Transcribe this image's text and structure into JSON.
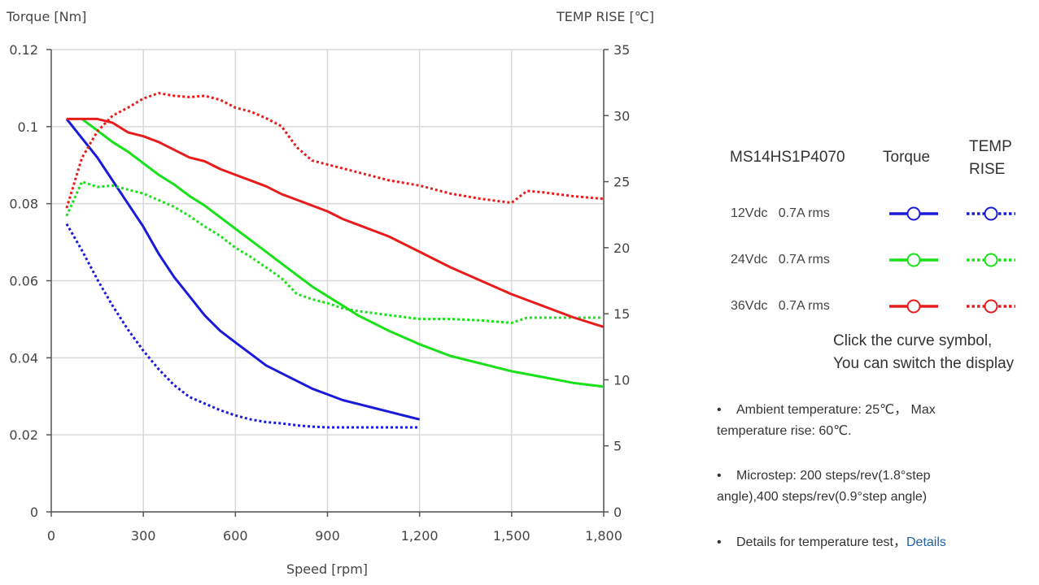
{
  "chart_data": {
    "type": "line",
    "title": "",
    "xlabel": "Speed [rpm]",
    "ylabel": "Torque  [Nm]",
    "y2label": "TEMP RISE [℃]",
    "xlim": [
      0,
      1800
    ],
    "ylim": [
      0,
      0.12
    ],
    "y2lim": [
      0,
      35
    ],
    "x_ticks": [
      0,
      300,
      600,
      900,
      1200,
      1500,
      1800
    ],
    "x_tick_labels": [
      "0",
      "300",
      "600",
      "900",
      "1,200",
      "1,500",
      "1,800"
    ],
    "y_ticks": [
      0,
      0.02,
      0.04,
      0.06,
      0.08,
      0.1,
      0.12
    ],
    "y_tick_labels": [
      "0",
      "0.02",
      "0.04",
      "0.06",
      "0.08",
      "0.1",
      "0.12"
    ],
    "y2_ticks": [
      0,
      5,
      10,
      15,
      20,
      25,
      30,
      35
    ],
    "y2_tick_labels": [
      "0",
      "5",
      "10",
      "15",
      "20",
      "25",
      "30",
      "35"
    ],
    "grid": true,
    "series": [
      {
        "name": "12Vdc 0.7A rms",
        "kind": "torque",
        "axis": "left",
        "color": "#1a1adb",
        "style": "solid",
        "x": [
          50,
          100,
          150,
          200,
          250,
          300,
          350,
          400,
          450,
          500,
          550,
          600,
          650,
          700,
          750,
          800,
          850,
          900,
          950,
          1000,
          1050,
          1100,
          1150,
          1200
        ],
        "y": [
          0.102,
          0.097,
          0.092,
          0.086,
          0.08,
          0.074,
          0.067,
          0.061,
          0.056,
          0.051,
          0.047,
          0.044,
          0.041,
          0.038,
          0.036,
          0.034,
          0.032,
          0.0305,
          0.029,
          0.028,
          0.027,
          0.026,
          0.025,
          0.024
        ]
      },
      {
        "name": "12Vdc 0.7A rms",
        "kind": "temp",
        "axis": "right",
        "color": "#1a1adb",
        "style": "dotted",
        "x": [
          50,
          100,
          150,
          200,
          250,
          300,
          350,
          400,
          450,
          500,
          550,
          600,
          650,
          700,
          750,
          800,
          850,
          900,
          950,
          1000,
          1050,
          1100,
          1150,
          1200
        ],
        "y": [
          21.8,
          19.8,
          17.6,
          15.6,
          13.8,
          12.2,
          10.8,
          9.6,
          8.7,
          8.2,
          7.7,
          7.3,
          7.0,
          6.8,
          6.7,
          6.55,
          6.45,
          6.4,
          6.4,
          6.4,
          6.4,
          6.4,
          6.4,
          6.4
        ]
      },
      {
        "name": "24Vdc 0.7A rms",
        "kind": "torque",
        "axis": "left",
        "color": "#19e119",
        "style": "solid",
        "x": [
          100,
          150,
          200,
          250,
          300,
          350,
          400,
          450,
          500,
          550,
          600,
          650,
          700,
          750,
          800,
          850,
          900,
          950,
          1000,
          1100,
          1200,
          1300,
          1400,
          1500,
          1600,
          1700,
          1800
        ],
        "y": [
          0.102,
          0.099,
          0.096,
          0.0935,
          0.0905,
          0.0875,
          0.085,
          0.082,
          0.0795,
          0.0765,
          0.0735,
          0.0705,
          0.0675,
          0.0645,
          0.0615,
          0.0585,
          0.056,
          0.0535,
          0.051,
          0.047,
          0.0435,
          0.0405,
          0.0385,
          0.0365,
          0.035,
          0.0335,
          0.0325
        ]
      },
      {
        "name": "24Vdc 0.7A rms",
        "kind": "temp",
        "axis": "right",
        "color": "#19e119",
        "style": "dotted",
        "x": [
          50,
          100,
          150,
          200,
          250,
          300,
          350,
          400,
          450,
          500,
          550,
          600,
          650,
          700,
          750,
          800,
          850,
          900,
          950,
          1000,
          1100,
          1200,
          1300,
          1400,
          1450,
          1500,
          1550,
          1600,
          1700,
          1800
        ],
        "y": [
          22.4,
          25.0,
          24.6,
          24.7,
          24.4,
          24.1,
          23.6,
          23.1,
          22.4,
          21.6,
          20.9,
          20.0,
          19.3,
          18.5,
          17.7,
          16.5,
          16.1,
          15.8,
          15.4,
          15.2,
          14.9,
          14.6,
          14.6,
          14.5,
          14.4,
          14.3,
          14.7,
          14.7,
          14.7,
          14.7
        ]
      },
      {
        "name": "36Vdc 0.7A rms",
        "kind": "torque",
        "axis": "left",
        "color": "#e81c1c",
        "style": "solid",
        "x": [
          50,
          100,
          150,
          200,
          250,
          300,
          350,
          400,
          450,
          500,
          550,
          600,
          650,
          700,
          750,
          800,
          850,
          900,
          950,
          1000,
          1100,
          1200,
          1300,
          1400,
          1500,
          1600,
          1700,
          1800
        ],
        "y": [
          0.102,
          0.102,
          0.102,
          0.101,
          0.0985,
          0.0975,
          0.096,
          0.094,
          0.092,
          0.091,
          0.089,
          0.0875,
          0.086,
          0.0845,
          0.0825,
          0.081,
          0.0795,
          0.078,
          0.076,
          0.0745,
          0.0715,
          0.0675,
          0.0635,
          0.06,
          0.0565,
          0.0535,
          0.0505,
          0.048
        ]
      },
      {
        "name": "36Vdc 0.7A rms",
        "kind": "temp",
        "axis": "right",
        "color": "#e81c1c",
        "style": "dotted",
        "x": [
          50,
          100,
          150,
          200,
          250,
          300,
          350,
          400,
          450,
          500,
          550,
          600,
          650,
          700,
          750,
          800,
          850,
          900,
          1000,
          1100,
          1200,
          1300,
          1400,
          1500,
          1550,
          1600,
          1700,
          1800
        ],
        "y": [
          23.0,
          26.8,
          28.8,
          30.0,
          30.6,
          31.3,
          31.7,
          31.5,
          31.4,
          31.5,
          31.2,
          30.6,
          30.3,
          29.8,
          29.2,
          27.6,
          26.6,
          26.3,
          25.7,
          25.1,
          24.7,
          24.1,
          23.7,
          23.4,
          24.3,
          24.2,
          23.9,
          23.7
        ]
      }
    ]
  },
  "legend": {
    "model": "MS14HS1P4070",
    "col_torque": "Torque",
    "col_temp": "TEMP RISE",
    "rows": [
      {
        "label": "12Vdc   0.7A rms",
        "color": "#1a1adb"
      },
      {
        "label": "24Vdc   0.7A rms",
        "color": "#19e119"
      },
      {
        "label": "36Vdc   0.7A rms",
        "color": "#e81c1c"
      }
    ]
  },
  "hint": {
    "line1": "Click the curve symbol,",
    "line2": "You can switch the display"
  },
  "notes": [
    {
      "text": "Ambient temperature: 25℃， Max temperature rise: 60℃."
    },
    {
      "text": "Microstep: 200 steps/rev(1.8°step angle),400 steps/rev(0.9°step angle)"
    },
    {
      "text": "Details for temperature test，",
      "link": "Details"
    }
  ]
}
